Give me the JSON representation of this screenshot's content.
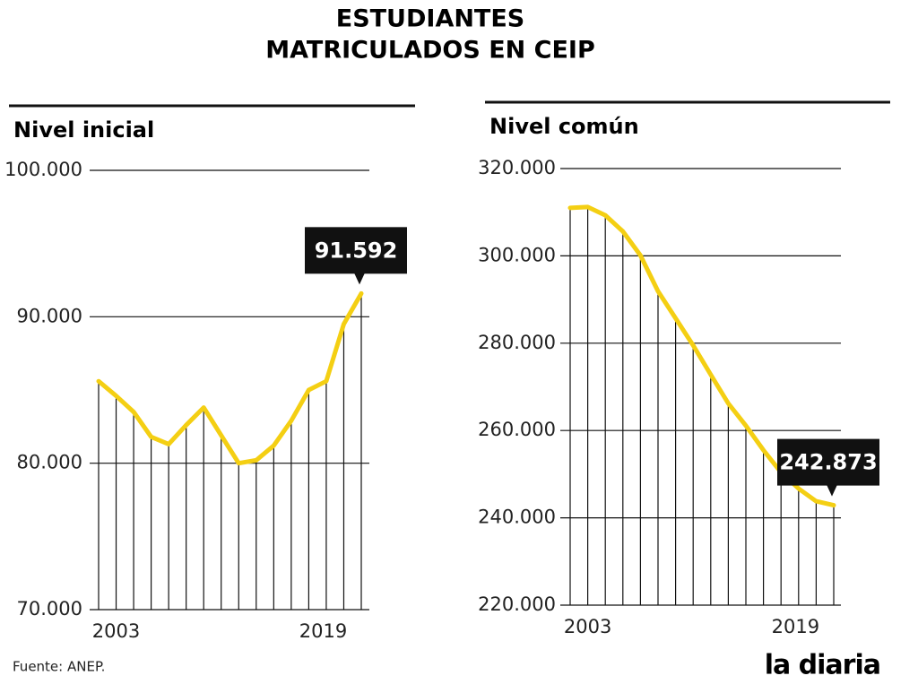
{
  "title": [
    "ESTUDIANTES",
    "MATRICULADOS EN CEIP"
  ],
  "source": "Fuente: ANEP.",
  "brand": "la diaria",
  "chart_data": [
    {
      "type": "line",
      "title": "Nivel inicial",
      "categories": [
        null,
        "2003",
        null,
        null,
        null,
        null,
        null,
        null,
        null,
        null,
        null,
        null,
        null,
        null,
        "2019",
        null
      ],
      "values": [
        85600,
        84600,
        83500,
        81800,
        81300,
        82600,
        83800,
        81900,
        80000,
        80200,
        81200,
        82900,
        85000,
        85600,
        89500,
        91592
      ],
      "value_labels": [
        null,
        null,
        null,
        null,
        null,
        null,
        null,
        null,
        null,
        null,
        null,
        null,
        null,
        null,
        null,
        "91.592"
      ],
      "color": "#f4cf13",
      "ylim": [
        70000,
        100000
      ],
      "yticks": [
        {
          "value": 70000,
          "label": "70.000"
        },
        {
          "value": 80000,
          "label": "80.000"
        },
        {
          "value": 90000,
          "label": "90.000"
        },
        {
          "value": 100000,
          "label": "100.000"
        }
      ],
      "grid": true
    },
    {
      "type": "line",
      "title": "Nivel común",
      "categories": [
        null,
        "2003",
        null,
        null,
        null,
        null,
        null,
        null,
        null,
        null,
        null,
        null,
        null,
        null,
        "2019",
        null
      ],
      "values": [
        311000,
        311200,
        309300,
        305600,
        300100,
        291900,
        285700,
        279500,
        272800,
        266200,
        261100,
        255500,
        250400,
        246700,
        243800,
        242873
      ],
      "value_labels": [
        null,
        null,
        null,
        null,
        null,
        null,
        null,
        null,
        null,
        null,
        null,
        null,
        null,
        null,
        null,
        "242.873"
      ],
      "color": "#f4cf13",
      "ylim": [
        220000,
        320000
      ],
      "yticks": [
        {
          "value": 220000,
          "label": "220.000"
        },
        {
          "value": 240000,
          "label": "240.000"
        },
        {
          "value": 260000,
          "label": "260.000"
        },
        {
          "value": 280000,
          "label": "280.000"
        },
        {
          "value": 300000,
          "label": "300.000"
        },
        {
          "value": 320000,
          "label": "320.000"
        }
      ],
      "grid": true
    }
  ]
}
